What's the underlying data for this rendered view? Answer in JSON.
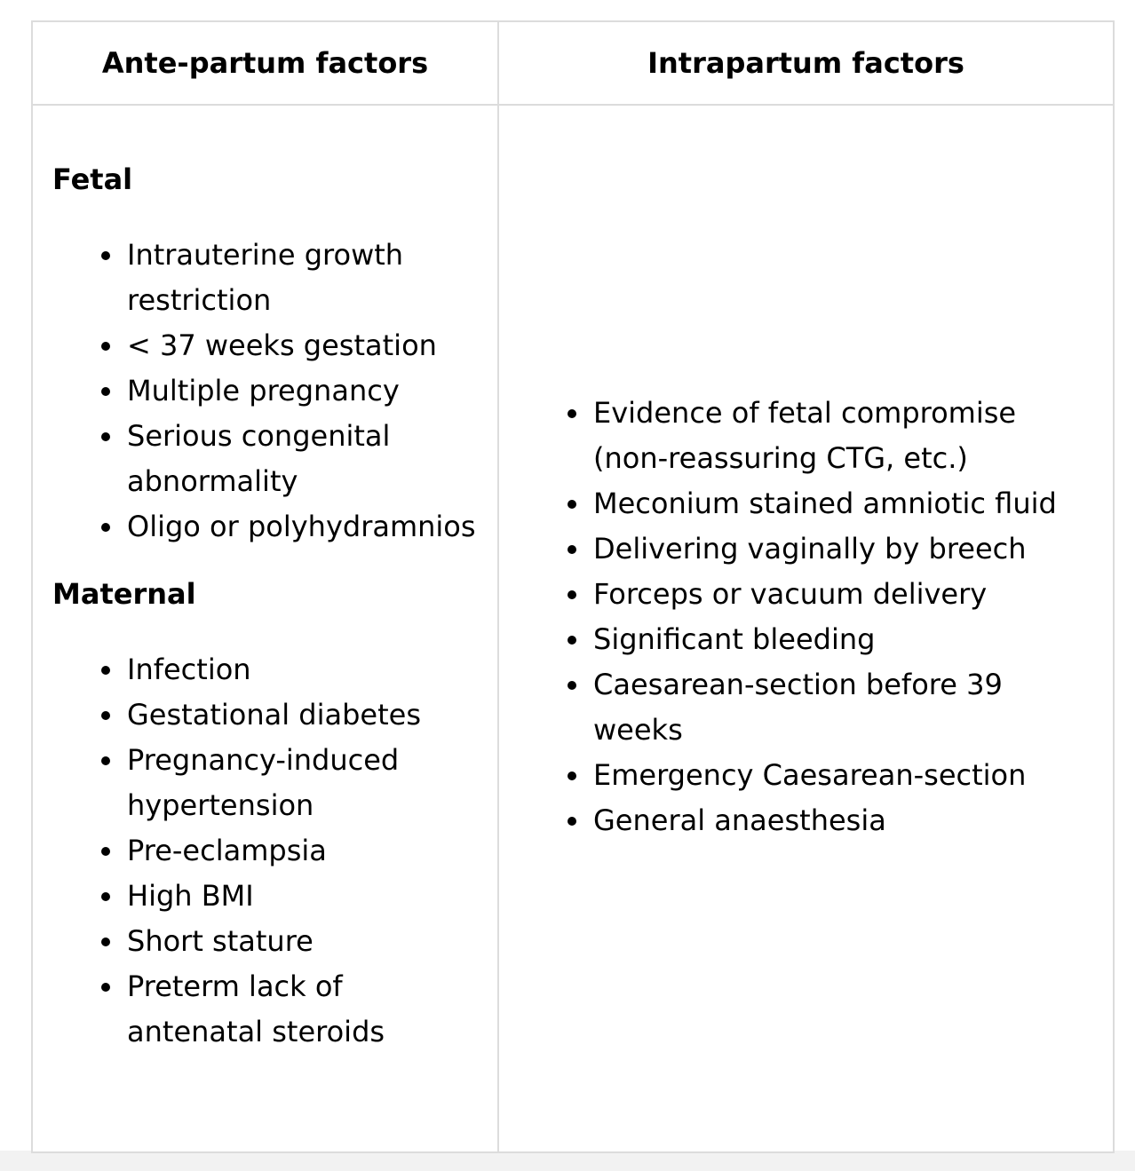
{
  "table": {
    "headers": [
      "Ante-partum factors",
      "Intrapartum factors"
    ],
    "ante_partum": {
      "fetal": {
        "heading": "Fetal",
        "items": [
          "Intrauterine growth restriction",
          "< 37 weeks gestation",
          "Multiple pregnancy",
          "Serious congenital abnormality",
          "Oligo or polyhydramnios"
        ]
      },
      "maternal": {
        "heading": "Maternal",
        "items": [
          "Infection",
          "Gestational diabetes",
          "Pregnancy-induced hypertension",
          "Pre-eclampsia",
          "High BMI",
          "Short stature",
          "Preterm lack of antenatal steroids"
        ]
      }
    },
    "intrapartum": {
      "items": [
        "Evidence of fetal compromise (non-reassuring CTG, etc.)",
        "Meconium stained amniotic fluid",
        "Delivering vaginally by breech",
        "Forceps or vacuum delivery",
        "Significant bleeding",
        "Caesarean-section before 39 weeks",
        "Emergency Caesarean-section",
        "General anaesthesia"
      ]
    }
  }
}
